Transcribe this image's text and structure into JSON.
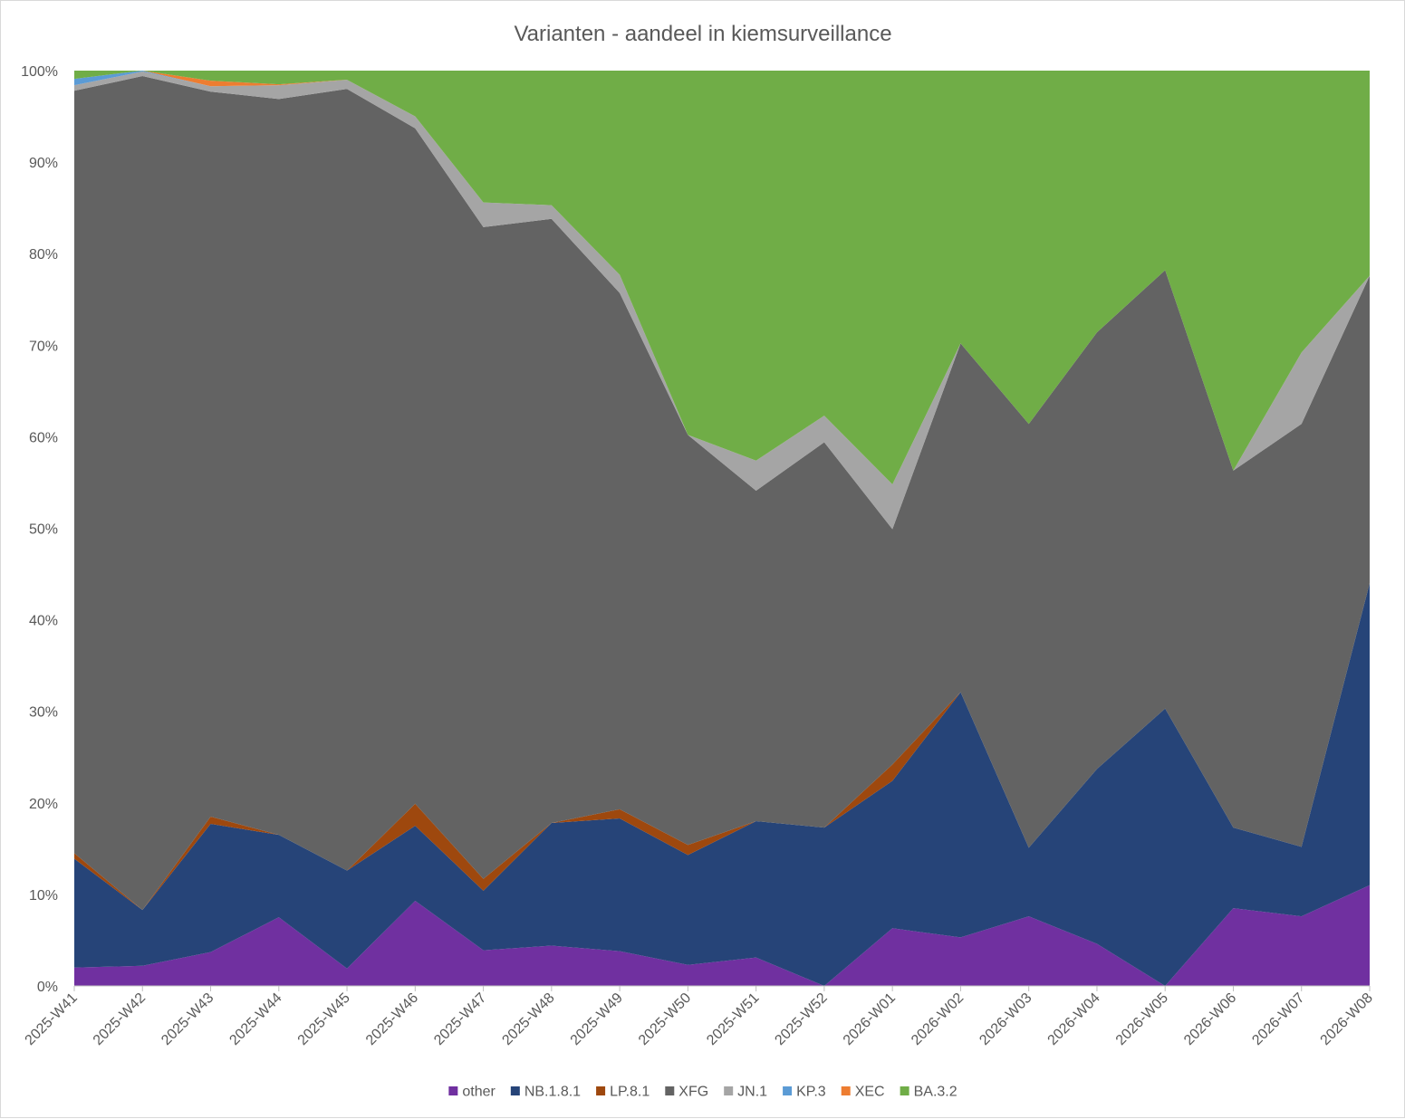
{
  "chart_data": {
    "type": "area",
    "stacked": "percent",
    "title": "Varianten - aandeel in kiemsurveillance",
    "categories": [
      "2025-W41",
      "2025-W42",
      "2025-W43",
      "2025-W44",
      "2025-W45",
      "2025-W46",
      "2025-W47",
      "2025-W48",
      "2025-W49",
      "2025-W50",
      "2025-W51",
      "2025-W52",
      "2026-W01",
      "2026-W02",
      "2026-W03",
      "2026-W04",
      "2026-W05",
      "2026-W06",
      "2026-W07",
      "2026-W08"
    ],
    "y_ticks": [
      "0%",
      "10%",
      "20%",
      "30%",
      "40%",
      "50%",
      "60%",
      "70%",
      "80%",
      "90%",
      "100%"
    ],
    "ylim": [
      0,
      100
    ],
    "legend_position": "bottom",
    "series": [
      {
        "name": "other",
        "color": "#7030a0",
        "values": [
          2.0,
          2.2,
          3.7,
          7.5,
          1.9,
          9.3,
          3.9,
          4.4,
          3.8,
          2.3,
          3.1,
          0.0,
          6.3,
          5.3,
          7.6,
          4.6,
          0.0,
          8.5,
          7.6,
          11.0
        ]
      },
      {
        "name": "NB.1.8.1",
        "color": "#264478",
        "values": [
          11.9,
          6.1,
          14.0,
          9.0,
          10.7,
          8.2,
          6.5,
          13.4,
          14.5,
          12.0,
          14.9,
          17.3,
          16.1,
          26.8,
          7.5,
          19.1,
          30.3,
          8.8,
          7.6,
          33.0
        ]
      },
      {
        "name": "LP.8.1",
        "color": "#9e480e",
        "values": [
          0.6,
          0.0,
          0.8,
          0.0,
          0.0,
          2.4,
          1.3,
          0.0,
          1.0,
          1.1,
          0.0,
          0.0,
          1.8,
          0.0,
          0.0,
          0.0,
          0.0,
          0.0,
          0.0,
          0.0
        ]
      },
      {
        "name": "XFG",
        "color": "#636363",
        "values": [
          83.3,
          91.2,
          79.2,
          80.4,
          85.4,
          73.8,
          71.2,
          66.0,
          56.4,
          44.8,
          36.1,
          42.1,
          25.7,
          38.1,
          46.3,
          47.7,
          47.9,
          39.0,
          46.2,
          33.6
        ]
      },
      {
        "name": "JN.1",
        "color": "#a5a5a5",
        "values": [
          0.6,
          0.5,
          0.6,
          1.5,
          1.0,
          1.3,
          2.7,
          1.5,
          2.0,
          0.0,
          3.3,
          2.9,
          4.9,
          0.0,
          0.0,
          0.0,
          0.0,
          0.0,
          7.8,
          0.0
        ]
      },
      {
        "name": "KP.3",
        "color": "#5b9bd5",
        "values": [
          0.7,
          0.1,
          0.0,
          0.0,
          0.0,
          0.0,
          0.0,
          0.0,
          0.0,
          0.0,
          0.0,
          0.0,
          0.0,
          0.0,
          0.0,
          0.0,
          0.0,
          0.0,
          0.0,
          0.0
        ]
      },
      {
        "name": "XEC",
        "color": "#ed7d31",
        "values": [
          0.0,
          0.0,
          0.6,
          0.1,
          0.0,
          0.0,
          0.0,
          0.0,
          0.0,
          0.0,
          0.0,
          0.0,
          0.0,
          0.0,
          0.0,
          0.0,
          0.0,
          0.0,
          0.0,
          0.0
        ]
      },
      {
        "name": "BA.3.2",
        "color": "#70ad47",
        "values": [
          0.9,
          0.0,
          1.1,
          1.5,
          1.0,
          5.0,
          14.4,
          14.7,
          22.3,
          39.8,
          42.6,
          37.7,
          45.2,
          29.8,
          38.6,
          28.6,
          21.8,
          43.7,
          30.8,
          22.4
        ]
      }
    ]
  }
}
